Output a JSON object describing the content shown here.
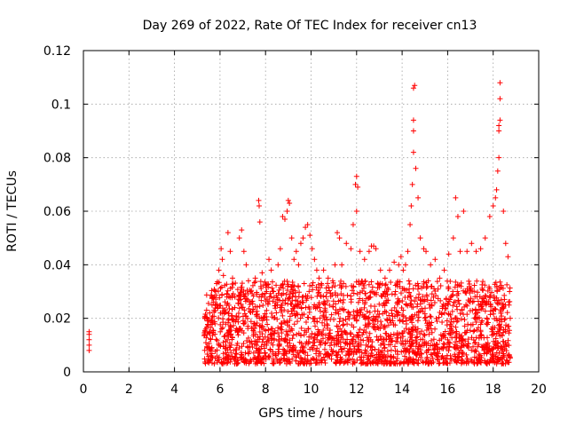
{
  "chart_data": {
    "type": "scatter",
    "title": "Day 269 of 2022, Rate Of TEC Index for receiver cn13",
    "xlabel": "GPS time / hours",
    "ylabel": "ROTI / TECUs",
    "xlim": [
      0,
      20
    ],
    "ylim": [
      0,
      0.12
    ],
    "xticks": [
      "0",
      "2",
      "4",
      "6",
      "8",
      "10",
      "12",
      "14",
      "16",
      "18",
      "20"
    ],
    "yticks": [
      "0",
      "0.02",
      "0.04",
      "0.06",
      "0.08",
      "0.1",
      "0.12"
    ],
    "grid": true,
    "marker": "+",
    "color": "#ff0000",
    "series": [
      {
        "points": [
          [
            0.25,
            0.008
          ],
          [
            0.25,
            0.01
          ],
          [
            0.25,
            0.012
          ],
          [
            0.25,
            0.014
          ],
          [
            0.25,
            0.015
          ],
          [
            5.35,
            0.015
          ],
          [
            5.45,
            0.019
          ],
          [
            5.55,
            0.022
          ],
          [
            5.65,
            0.025
          ],
          [
            5.75,
            0.028
          ],
          [
            5.85,
            0.033
          ],
          [
            5.95,
            0.038
          ],
          [
            6.05,
            0.046
          ],
          [
            6.1,
            0.042
          ],
          [
            6.15,
            0.036
          ],
          [
            6.35,
            0.052
          ],
          [
            6.45,
            0.045
          ],
          [
            6.55,
            0.035
          ],
          [
            6.65,
            0.024
          ],
          [
            6.85,
            0.05
          ],
          [
            6.95,
            0.053
          ],
          [
            7.05,
            0.045
          ],
          [
            7.15,
            0.04
          ],
          [
            7.25,
            0.034
          ],
          [
            7.35,
            0.03
          ],
          [
            7.55,
            0.035
          ],
          [
            7.7,
            0.064
          ],
          [
            7.72,
            0.062
          ],
          [
            7.75,
            0.056
          ],
          [
            7.85,
            0.037
          ],
          [
            8.05,
            0.03
          ],
          [
            8.15,
            0.042
          ],
          [
            8.25,
            0.038
          ],
          [
            8.35,
            0.03
          ],
          [
            8.55,
            0.04
          ],
          [
            8.65,
            0.046
          ],
          [
            8.75,
            0.058
          ],
          [
            8.85,
            0.057
          ],
          [
            8.95,
            0.06
          ],
          [
            9.0,
            0.064
          ],
          [
            9.05,
            0.063
          ],
          [
            9.15,
            0.05
          ],
          [
            9.25,
            0.042
          ],
          [
            9.35,
            0.045
          ],
          [
            9.45,
            0.04
          ],
          [
            9.55,
            0.048
          ],
          [
            9.65,
            0.05
          ],
          [
            9.75,
            0.054
          ],
          [
            9.85,
            0.055
          ],
          [
            9.95,
            0.051
          ],
          [
            10.05,
            0.046
          ],
          [
            10.15,
            0.042
          ],
          [
            10.25,
            0.038
          ],
          [
            10.35,
            0.035
          ],
          [
            10.45,
            0.033
          ],
          [
            10.55,
            0.038
          ],
          [
            10.75,
            0.035
          ],
          [
            10.95,
            0.034
          ],
          [
            11.05,
            0.04
          ],
          [
            11.15,
            0.052
          ],
          [
            11.25,
            0.05
          ],
          [
            11.35,
            0.04
          ],
          [
            11.55,
            0.048
          ],
          [
            11.75,
            0.046
          ],
          [
            11.85,
            0.055
          ],
          [
            11.95,
            0.07
          ],
          [
            12.0,
            0.073
          ],
          [
            12.05,
            0.069
          ],
          [
            12.0,
            0.06
          ],
          [
            12.15,
            0.045
          ],
          [
            12.35,
            0.042
          ],
          [
            12.55,
            0.045
          ],
          [
            12.65,
            0.047
          ],
          [
            12.75,
            0.047
          ],
          [
            12.85,
            0.046
          ],
          [
            13.05,
            0.038
          ],
          [
            13.25,
            0.035
          ],
          [
            13.45,
            0.038
          ],
          [
            13.65,
            0.041
          ],
          [
            13.85,
            0.04
          ],
          [
            13.95,
            0.043
          ],
          [
            14.05,
            0.038
          ],
          [
            14.15,
            0.04
          ],
          [
            14.25,
            0.045
          ],
          [
            14.35,
            0.055
          ],
          [
            14.4,
            0.062
          ],
          [
            14.45,
            0.07
          ],
          [
            14.5,
            0.082
          ],
          [
            14.5,
            0.09
          ],
          [
            14.5,
            0.094
          ],
          [
            14.5,
            0.106
          ],
          [
            14.55,
            0.107
          ],
          [
            14.6,
            0.076
          ],
          [
            14.7,
            0.065
          ],
          [
            14.8,
            0.05
          ],
          [
            14.95,
            0.046
          ],
          [
            15.05,
            0.045
          ],
          [
            15.25,
            0.04
          ],
          [
            15.45,
            0.042
          ],
          [
            15.65,
            0.035
          ],
          [
            15.85,
            0.038
          ],
          [
            16.05,
            0.044
          ],
          [
            16.25,
            0.05
          ],
          [
            16.35,
            0.065
          ],
          [
            16.45,
            0.058
          ],
          [
            16.55,
            0.045
          ],
          [
            16.7,
            0.06
          ],
          [
            16.85,
            0.045
          ],
          [
            17.05,
            0.048
          ],
          [
            17.25,
            0.045
          ],
          [
            17.45,
            0.046
          ],
          [
            17.65,
            0.05
          ],
          [
            17.85,
            0.058
          ],
          [
            18.0,
            0.062
          ],
          [
            18.1,
            0.065
          ],
          [
            18.15,
            0.068
          ],
          [
            18.2,
            0.075
          ],
          [
            18.25,
            0.08
          ],
          [
            18.25,
            0.09
          ],
          [
            18.25,
            0.092
          ],
          [
            18.3,
            0.094
          ],
          [
            18.3,
            0.102
          ],
          [
            18.3,
            0.108
          ],
          [
            18.45,
            0.06
          ],
          [
            18.55,
            0.048
          ],
          [
            18.65,
            0.043
          ],
          [
            18.72,
            0.03
          ],
          [
            18.75,
            0.02
          ]
        ]
      }
    ],
    "band": {
      "x_start": 5.3,
      "x_end": 18.75,
      "y_min": 0.003,
      "y_max": 0.034,
      "density": 2200
    }
  }
}
